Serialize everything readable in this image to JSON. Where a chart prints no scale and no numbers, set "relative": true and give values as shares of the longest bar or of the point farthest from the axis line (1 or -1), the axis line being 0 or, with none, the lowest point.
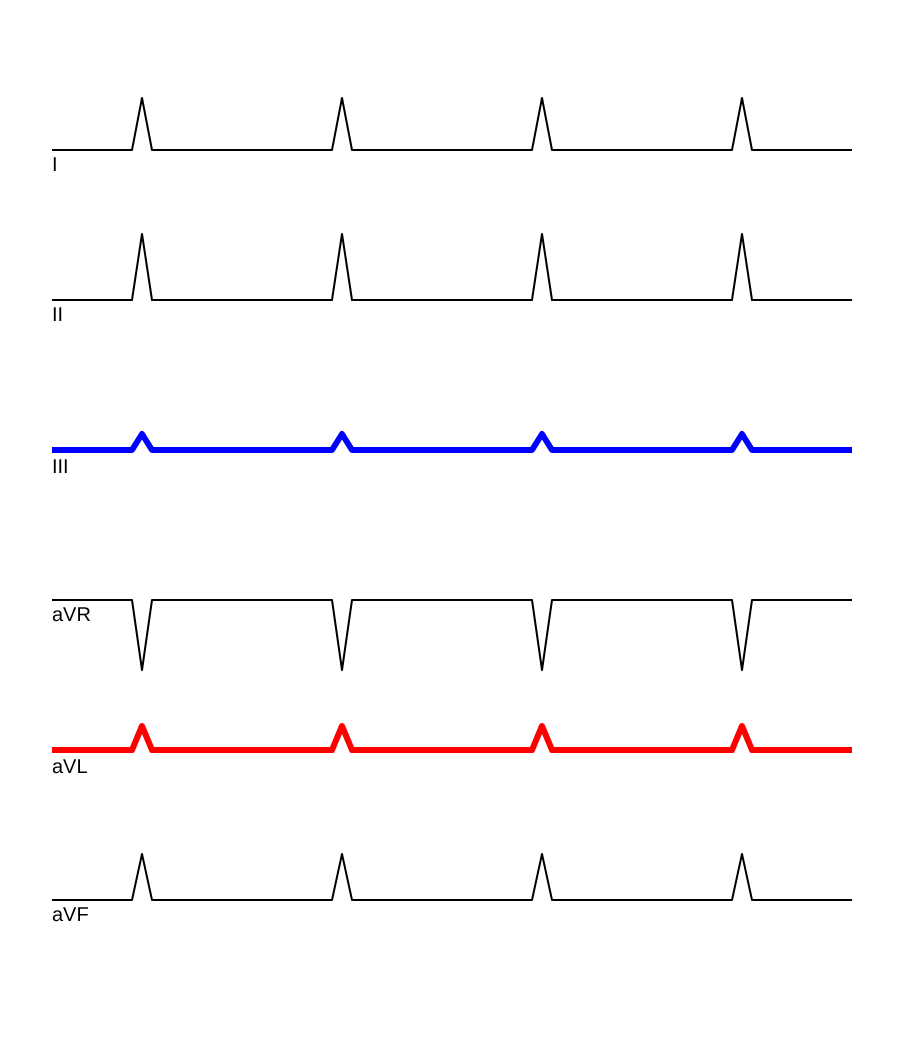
{
  "chart_data": [
    {
      "type": "line",
      "relative": true,
      "tick_labels": false,
      "legend": false,
      "marker": "none",
      "categories": [
        null,
        null,
        null,
        null,
        null,
        null,
        null,
        null,
        null,
        null,
        null,
        null,
        null,
        null,
        null,
        null,
        null,
        null,
        null,
        null,
        null,
        null,
        null,
        null,
        null,
        null,
        null,
        null,
        null,
        null,
        null,
        null,
        null,
        null,
        null,
        null,
        null,
        null,
        null,
        null,
        null,
        null,
        null,
        null,
        null,
        null,
        null,
        null,
        null,
        null,
        null,
        null,
        null,
        null,
        null,
        null,
        null,
        null,
        null,
        null,
        null,
        null,
        null,
        null,
        null,
        null,
        null,
        null,
        null,
        null,
        null,
        null,
        null,
        null,
        null,
        null,
        null,
        null,
        null,
        null,
        null
      ],
      "series": [
        {
          "name": "I",
          "color": "#000000",
          "values": [
            0,
            0,
            0,
            0,
            0,
            0,
            0,
            0,
            0,
            1,
            0,
            0,
            0,
            0,
            0,
            0,
            0,
            0,
            0,
            0,
            0,
            0,
            0,
            0,
            0,
            0,
            0,
            0,
            0,
            1,
            0,
            0,
            0,
            0,
            0,
            0,
            0,
            0,
            0,
            0,
            0,
            0,
            0,
            0,
            0,
            0,
            0,
            0,
            0,
            1,
            0,
            0,
            0,
            0,
            0,
            0,
            0,
            0,
            0,
            0,
            0,
            0,
            0,
            0,
            0,
            0,
            0,
            0,
            0,
            1,
            0,
            0,
            0,
            0,
            0,
            0,
            0,
            0,
            0,
            0,
            0
          ]
        }
      ]
    },
    {
      "type": "line",
      "relative": true,
      "tick_labels": false,
      "legend": false,
      "marker": "none",
      "categories": [
        null,
        null,
        null,
        null,
        null,
        null,
        null,
        null,
        null,
        null,
        null,
        null,
        null,
        null,
        null,
        null,
        null,
        null,
        null,
        null,
        null,
        null,
        null,
        null,
        null,
        null,
        null,
        null,
        null,
        null,
        null,
        null,
        null,
        null,
        null,
        null,
        null,
        null,
        null,
        null,
        null,
        null,
        null,
        null,
        null,
        null,
        null,
        null,
        null,
        null,
        null,
        null,
        null,
        null,
        null,
        null,
        null,
        null,
        null,
        null,
        null,
        null,
        null,
        null,
        null,
        null,
        null,
        null,
        null,
        null,
        null,
        null,
        null,
        null,
        null,
        null,
        null,
        null,
        null,
        null,
        null
      ],
      "series": [
        {
          "name": "II",
          "color": "#000000",
          "values": [
            0,
            0,
            0,
            0,
            0,
            0,
            0,
            0,
            0,
            1,
            0,
            0,
            0,
            0,
            0,
            0,
            0,
            0,
            0,
            0,
            0,
            0,
            0,
            0,
            0,
            0,
            0,
            0,
            0,
            1,
            0,
            0,
            0,
            0,
            0,
            0,
            0,
            0,
            0,
            0,
            0,
            0,
            0,
            0,
            0,
            0,
            0,
            0,
            0,
            1,
            0,
            0,
            0,
            0,
            0,
            0,
            0,
            0,
            0,
            0,
            0,
            0,
            0,
            0,
            0,
            0,
            0,
            0,
            0,
            1,
            0,
            0,
            0,
            0,
            0,
            0,
            0,
            0,
            0,
            0,
            0
          ]
        }
      ]
    },
    {
      "type": "line",
      "relative": true,
      "tick_labels": false,
      "legend": false,
      "marker": "none",
      "categories": [
        null,
        null,
        null,
        null,
        null,
        null,
        null,
        null,
        null,
        null,
        null,
        null,
        null,
        null,
        null,
        null,
        null,
        null,
        null,
        null,
        null,
        null,
        null,
        null,
        null,
        null,
        null,
        null,
        null,
        null,
        null,
        null,
        null,
        null,
        null,
        null,
        null,
        null,
        null,
        null,
        null,
        null,
        null,
        null,
        null,
        null,
        null,
        null,
        null,
        null,
        null,
        null,
        null,
        null,
        null,
        null,
        null,
        null,
        null,
        null,
        null,
        null,
        null,
        null,
        null,
        null,
        null,
        null,
        null,
        null,
        null,
        null,
        null,
        null,
        null,
        null,
        null,
        null,
        null,
        null,
        null
      ],
      "series": [
        {
          "name": "III",
          "color": "#0000ff",
          "values": [
            0,
            0,
            0,
            0,
            0,
            0,
            0,
            0,
            0,
            1,
            0,
            0,
            0,
            0,
            0,
            0,
            0,
            0,
            0,
            0,
            0,
            0,
            0,
            0,
            0,
            0,
            0,
            0,
            0,
            1,
            0,
            0,
            0,
            0,
            0,
            0,
            0,
            0,
            0,
            0,
            0,
            0,
            0,
            0,
            0,
            0,
            0,
            0,
            0,
            1,
            0,
            0,
            0,
            0,
            0,
            0,
            0,
            0,
            0,
            0,
            0,
            0,
            0,
            0,
            0,
            0,
            0,
            0,
            0,
            1,
            0,
            0,
            0,
            0,
            0,
            0,
            0,
            0,
            0,
            0,
            0
          ]
        }
      ]
    },
    {
      "type": "line",
      "relative": true,
      "tick_labels": false,
      "legend": false,
      "marker": "none",
      "categories": [
        null,
        null,
        null,
        null,
        null,
        null,
        null,
        null,
        null,
        null,
        null,
        null,
        null,
        null,
        null,
        null,
        null,
        null,
        null,
        null,
        null,
        null,
        null,
        null,
        null,
        null,
        null,
        null,
        null,
        null,
        null,
        null,
        null,
        null,
        null,
        null,
        null,
        null,
        null,
        null,
        null,
        null,
        null,
        null,
        null,
        null,
        null,
        null,
        null,
        null,
        null,
        null,
        null,
        null,
        null,
        null,
        null,
        null,
        null,
        null,
        null,
        null,
        null,
        null,
        null,
        null,
        null,
        null,
        null,
        null,
        null,
        null,
        null,
        null,
        null,
        null,
        null,
        null,
        null,
        null,
        null
      ],
      "series": [
        {
          "name": "aVR",
          "color": "#000000",
          "values": [
            1,
            1,
            1,
            1,
            1,
            1,
            1,
            1,
            1,
            0,
            1,
            1,
            1,
            1,
            1,
            1,
            1,
            1,
            1,
            1,
            1,
            1,
            1,
            1,
            1,
            1,
            1,
            1,
            1,
            0,
            1,
            1,
            1,
            1,
            1,
            1,
            1,
            1,
            1,
            1,
            1,
            1,
            1,
            1,
            1,
            1,
            1,
            1,
            1,
            0,
            1,
            1,
            1,
            1,
            1,
            1,
            1,
            1,
            1,
            1,
            1,
            1,
            1,
            1,
            1,
            1,
            1,
            1,
            1,
            0,
            1,
            1,
            1,
            1,
            1,
            1,
            1,
            1,
            1,
            1,
            1
          ]
        }
      ]
    },
    {
      "type": "line",
      "relative": true,
      "tick_labels": false,
      "legend": false,
      "marker": "none",
      "categories": [
        null,
        null,
        null,
        null,
        null,
        null,
        null,
        null,
        null,
        null,
        null,
        null,
        null,
        null,
        null,
        null,
        null,
        null,
        null,
        null,
        null,
        null,
        null,
        null,
        null,
        null,
        null,
        null,
        null,
        null,
        null,
        null,
        null,
        null,
        null,
        null,
        null,
        null,
        null,
        null,
        null,
        null,
        null,
        null,
        null,
        null,
        null,
        null,
        null,
        null,
        null,
        null,
        null,
        null,
        null,
        null,
        null,
        null,
        null,
        null,
        null,
        null,
        null,
        null,
        null,
        null,
        null,
        null,
        null,
        null,
        null,
        null,
        null,
        null,
        null,
        null,
        null,
        null,
        null,
        null,
        null
      ],
      "series": [
        {
          "name": "aVL",
          "color": "#ff0000",
          "values": [
            0,
            0,
            0,
            0,
            0,
            0,
            0,
            0,
            0,
            1,
            0,
            0,
            0,
            0,
            0,
            0,
            0,
            0,
            0,
            0,
            0,
            0,
            0,
            0,
            0,
            0,
            0,
            0,
            0,
            1,
            0,
            0,
            0,
            0,
            0,
            0,
            0,
            0,
            0,
            0,
            0,
            0,
            0,
            0,
            0,
            0,
            0,
            0,
            0,
            1,
            0,
            0,
            0,
            0,
            0,
            0,
            0,
            0,
            0,
            0,
            0,
            0,
            0,
            0,
            0,
            0,
            0,
            0,
            0,
            1,
            0,
            0,
            0,
            0,
            0,
            0,
            0,
            0,
            0,
            0,
            0
          ]
        }
      ]
    },
    {
      "type": "line",
      "relative": true,
      "tick_labels": false,
      "legend": false,
      "marker": "none",
      "categories": [
        null,
        null,
        null,
        null,
        null,
        null,
        null,
        null,
        null,
        null,
        null,
        null,
        null,
        null,
        null,
        null,
        null,
        null,
        null,
        null,
        null,
        null,
        null,
        null,
        null,
        null,
        null,
        null,
        null,
        null,
        null,
        null,
        null,
        null,
        null,
        null,
        null,
        null,
        null,
        null,
        null,
        null,
        null,
        null,
        null,
        null,
        null,
        null,
        null,
        null,
        null,
        null,
        null,
        null,
        null,
        null,
        null,
        null,
        null,
        null,
        null,
        null,
        null,
        null,
        null,
        null,
        null,
        null,
        null,
        null,
        null,
        null,
        null,
        null,
        null,
        null,
        null,
        null,
        null,
        null,
        null
      ],
      "series": [
        {
          "name": "aVF",
          "color": "#000000",
          "values": [
            0,
            0,
            0,
            0,
            0,
            0,
            0,
            0,
            0,
            1,
            0,
            0,
            0,
            0,
            0,
            0,
            0,
            0,
            0,
            0,
            0,
            0,
            0,
            0,
            0,
            0,
            0,
            0,
            0,
            1,
            0,
            0,
            0,
            0,
            0,
            0,
            0,
            0,
            0,
            0,
            0,
            0,
            0,
            0,
            0,
            0,
            0,
            0,
            0,
            1,
            0,
            0,
            0,
            0,
            0,
            0,
            0,
            0,
            0,
            0,
            0,
            0,
            0,
            0,
            0,
            0,
            0,
            0,
            0,
            1,
            0,
            0,
            0,
            0,
            0,
            0,
            0,
            0,
            0,
            0,
            0
          ]
        }
      ]
    }
  ]
}
